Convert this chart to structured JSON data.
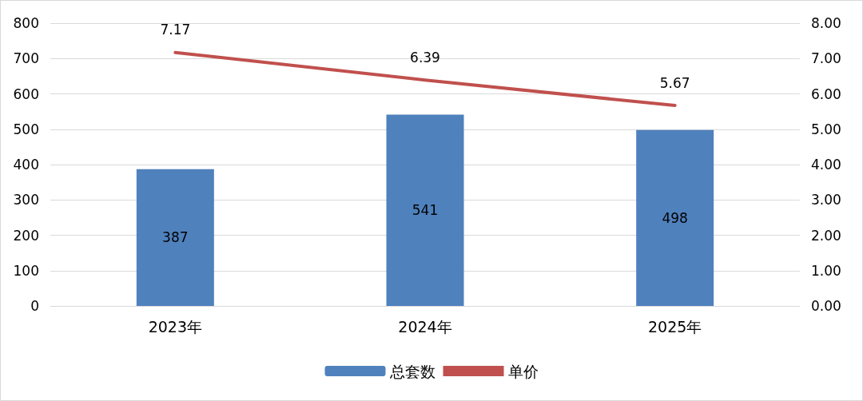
{
  "chart_data": {
    "type": "bar",
    "categories": [
      "2023年",
      "2024年",
      "2025年"
    ],
    "series": [
      {
        "name": "总套数",
        "color": "#4f81bd",
        "values": [
          387,
          541,
          498
        ]
      },
      {
        "name": "单价",
        "type": "line",
        "axis": "y2",
        "color": "#c0504d",
        "values": [
          7.17,
          6.39,
          5.67
        ]
      }
    ],
    "ylim": [
      0,
      800
    ],
    "yticks": [
      0,
      100,
      200,
      300,
      400,
      500,
      600,
      700,
      800
    ],
    "y2lim": [
      0,
      8
    ],
    "y2ticks": [
      {
        "value": 0,
        "label": "0.00"
      },
      {
        "value": 1,
        "label": "1.00"
      },
      {
        "value": 2,
        "label": "2.00"
      },
      {
        "value": 3,
        "label": "3.00"
      },
      {
        "value": 4,
        "label": "4.00"
      },
      {
        "value": 5,
        "label": "5.00"
      },
      {
        "value": 6,
        "label": "6.00"
      },
      {
        "value": 7,
        "label": "7.00"
      },
      {
        "value": 8,
        "label": "8.00"
      }
    ],
    "grid": "y",
    "legend": "bottom",
    "data_labels": true,
    "marker": "none",
    "line_style": "solid"
  }
}
